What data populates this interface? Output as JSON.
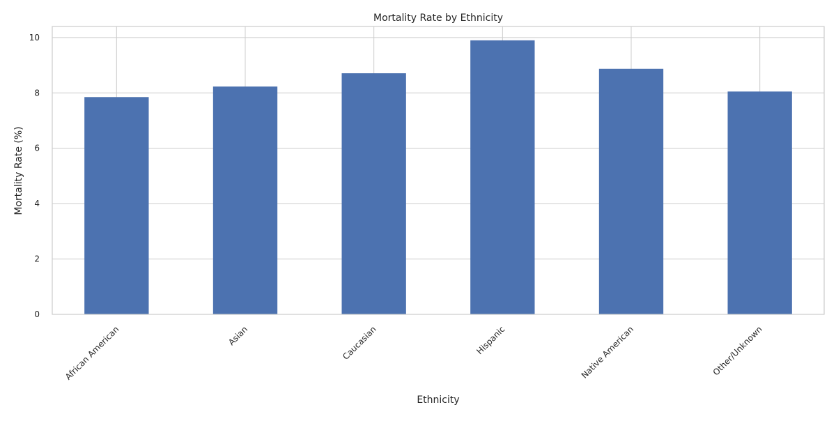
{
  "chart_data": {
    "type": "bar",
    "title": "Mortality Rate by Ethnicity",
    "xlabel": "Ethnicity",
    "ylabel": "Mortality Rate (%)",
    "categories": [
      "African American",
      "Asian",
      "Caucasian",
      "Hispanic",
      "Native American",
      "Other/Unknown"
    ],
    "values": [
      7.85,
      8.23,
      8.71,
      9.9,
      8.87,
      8.05
    ],
    "ylim": [
      0,
      10.4
    ],
    "yticks": [
      0,
      2,
      4,
      6,
      8,
      10
    ],
    "grid": true,
    "colors": {
      "bar": "#4c72b0",
      "grid": "#cccccc",
      "spine": "#cccccc",
      "text": "#262626"
    }
  }
}
